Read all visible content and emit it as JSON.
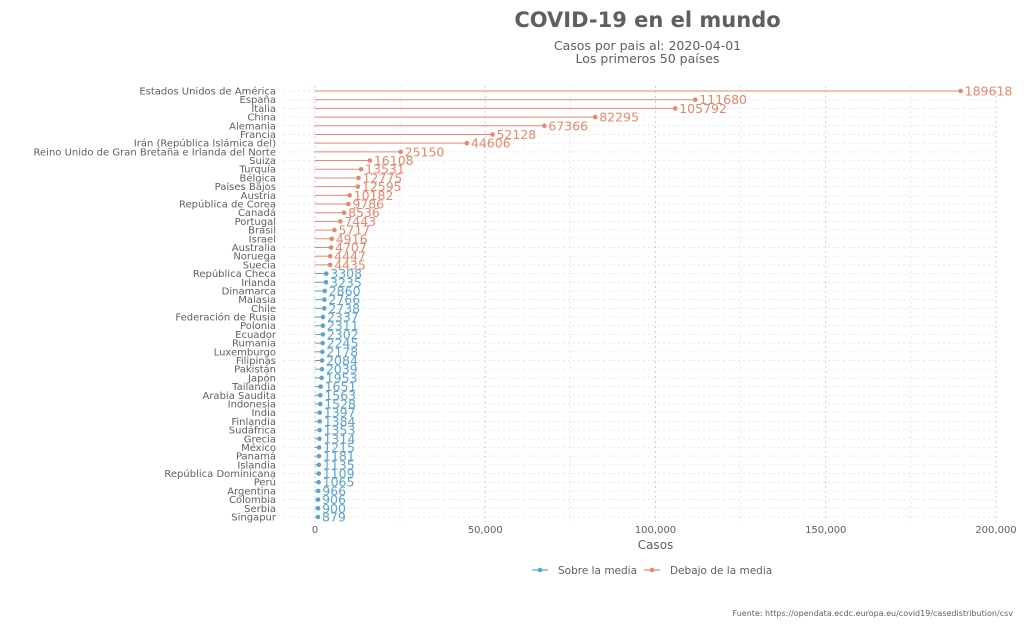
{
  "chart_data": {
    "type": "lollipop",
    "title": "COVID-19 en el mundo",
    "subtitle_line1": "Casos por pais al:  2020-04-01",
    "subtitle_line2": "Los primeros 50 países",
    "xlabel": "Casos",
    "xlim": [
      0,
      200000
    ],
    "xticks": [
      "0",
      "50,000",
      "100,000",
      "150,000",
      "200,000"
    ],
    "grid": true,
    "legend_position": "bottom",
    "colors": {
      "above": "#e8876d",
      "below": "#5ba3cf"
    },
    "legend": [
      {
        "key": "below",
        "label": "Sobre la media"
      },
      {
        "key": "above",
        "label": "Debajo de la media"
      }
    ],
    "categories": [
      "Estados Unidos de América",
      "España",
      "Italia",
      "China",
      "Alemania",
      "Francia",
      "Irán (República Islámica del)",
      "Reino Unido de Gran Bretaña e Irlanda del Norte",
      "Suiza",
      "Turquía",
      "Bélgica",
      "Países Bajos",
      "Austria",
      "República de Corea",
      "Canadá",
      "Portugal",
      "Brasil",
      "Israel",
      "Australia",
      "Noruega",
      "Suecia",
      "República Checa",
      "Irlanda",
      "Dinamarca",
      "Malasia",
      "Chile",
      "Federación de Rusia",
      "Polonia",
      "Ecuador",
      "Rumania",
      "Luxemburgo",
      "Filipinas",
      "Pakistán",
      "Japón",
      "Tailandia",
      "Arabia Saudita",
      "Indonesia",
      "India",
      "Finlandia",
      "Sudáfrica",
      "Grecia",
      "México",
      "Panamá",
      "Islandia",
      "República Dominicana",
      "Perú",
      "Argentina",
      "Colombia",
      "Serbia",
      "Singapur"
    ],
    "values": [
      189618,
      111680,
      105792,
      82295,
      67366,
      52128,
      44606,
      25150,
      16108,
      13531,
      12775,
      12595,
      10182,
      9786,
      8536,
      7443,
      5717,
      4916,
      4707,
      4447,
      4435,
      3308,
      3235,
      2860,
      2766,
      2738,
      2337,
      2311,
      2302,
      2245,
      2178,
      2084,
      2039,
      1953,
      1651,
      1563,
      1528,
      1397,
      1384,
      1353,
      1314,
      1215,
      1181,
      1135,
      1109,
      1065,
      966,
      906,
      900,
      879
    ],
    "groups": [
      "above",
      "above",
      "above",
      "above",
      "above",
      "above",
      "above",
      "above",
      "above",
      "above",
      "above",
      "above",
      "above",
      "above",
      "above",
      "above",
      "above",
      "above",
      "above",
      "above",
      "above",
      "below",
      "below",
      "below",
      "below",
      "below",
      "below",
      "below",
      "below",
      "below",
      "below",
      "below",
      "below",
      "below",
      "below",
      "below",
      "below",
      "below",
      "below",
      "below",
      "below",
      "below",
      "below",
      "below",
      "below",
      "below",
      "below",
      "below",
      "below",
      "below"
    ]
  },
  "source": "Fuente: https://opendata.ecdc.europa.eu/covid19/casedistribution/csv"
}
